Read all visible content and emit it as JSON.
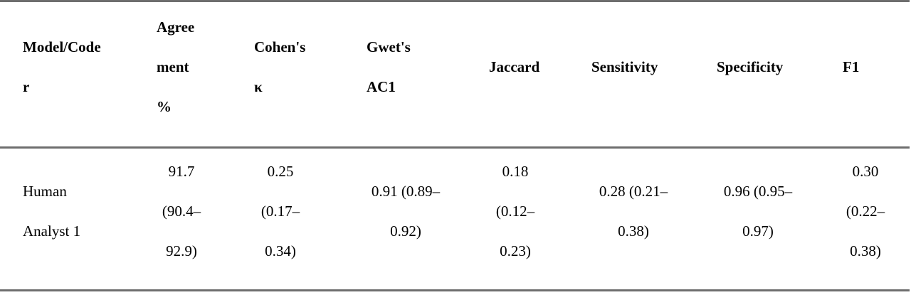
{
  "table": {
    "headers": [
      {
        "key": "model",
        "lines": [
          "Model/Code",
          "r"
        ]
      },
      {
        "key": "agreement",
        "lines": [
          "Agree",
          "ment",
          "%"
        ]
      },
      {
        "key": "kappa",
        "lines": [
          "Cohen's",
          "κ"
        ]
      },
      {
        "key": "ac1",
        "lines": [
          "Gwet's",
          "AC1"
        ]
      },
      {
        "key": "jaccard",
        "lines": [
          "Jaccard"
        ]
      },
      {
        "key": "sensitivity",
        "lines": [
          "Sensitivity"
        ]
      },
      {
        "key": "specificity",
        "lines": [
          "Specificity"
        ]
      },
      {
        "key": "f1",
        "lines": [
          "F1"
        ]
      }
    ],
    "rows": [
      {
        "model": [
          "Human",
          "Analyst 1"
        ],
        "agreement": [
          "91.7",
          "(90.4–",
          "92.9)"
        ],
        "kappa": [
          "0.25",
          "(0.17–",
          "0.34)"
        ],
        "ac1": [
          "0.91 (0.89–",
          "0.92)"
        ],
        "jaccard": [
          "0.18",
          "(0.12–",
          "0.23)"
        ],
        "sensitivity": [
          "0.28 (0.21–",
          "0.38)"
        ],
        "specificity": [
          "0.96 (0.95–",
          "0.97)"
        ],
        "f1": [
          "0.30",
          "(0.22–",
          "0.38)"
        ]
      }
    ]
  }
}
